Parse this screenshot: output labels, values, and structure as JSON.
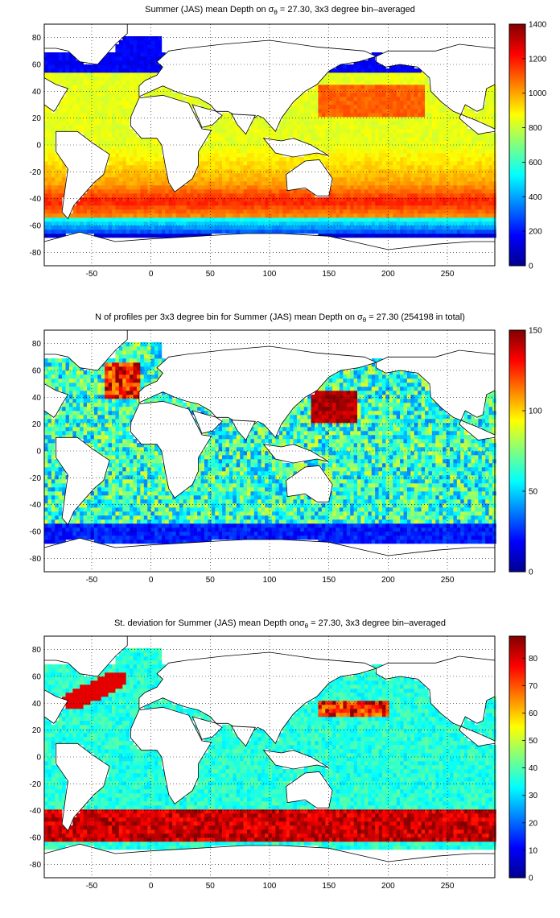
{
  "x_ticks": [
    "-50",
    "0",
    "50",
    "100",
    "150",
    "200",
    "250"
  ],
  "y_ticks": [
    "80",
    "60",
    "40",
    "20",
    "0",
    "-20",
    "-40",
    "-60",
    "-80"
  ],
  "panels": [
    {
      "title_pre": "Summer (JAS) mean Depth on σ",
      "title_sub": "θ",
      "title_post": " = 27.30, 3x3 degree bin–averaged",
      "colorbar": {
        "min": 0,
        "max": 1400,
        "ticks": [
          "0",
          "200",
          "400",
          "600",
          "800",
          "1000",
          "1200",
          "1400"
        ]
      }
    },
    {
      "title_pre": "N of profiles per 3x3 degree bin for Summer (JAS) mean Depth on σ",
      "title_sub": "θ",
      "title_post": " = 27.30 (254198 in total)",
      "colorbar": {
        "min": 0,
        "max": 150,
        "ticks": [
          "0",
          "50",
          "100",
          "150"
        ]
      }
    },
    {
      "title_pre": "St. deviation for Summer (JAS) mean Depth onσ",
      "title_sub": "θ",
      "title_post": " = 27.30, 3x3 degree bin–averaged",
      "colorbar": {
        "min": 0,
        "max": 88,
        "ticks": [
          "0",
          "10",
          "20",
          "30",
          "40",
          "50",
          "60",
          "70",
          "80"
        ]
      }
    }
  ],
  "colormap": "jet"
}
